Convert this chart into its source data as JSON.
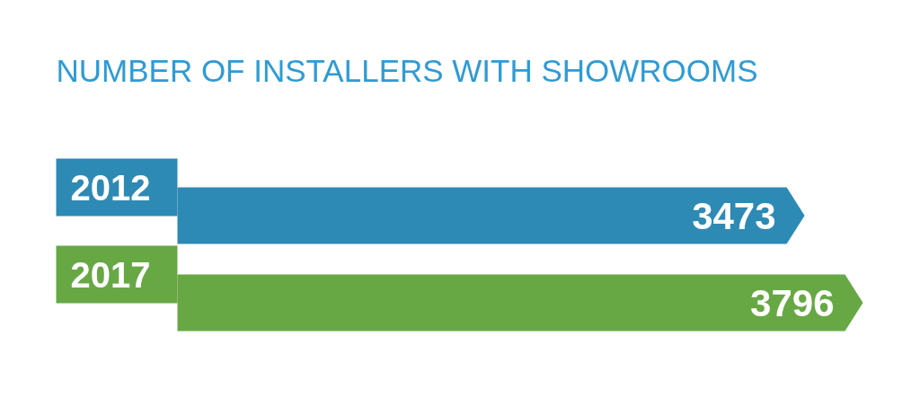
{
  "chart_data": {
    "type": "bar",
    "title": "NUMBER OF INSTALLERS WITH SHOWROOMS",
    "orientation": "horizontal",
    "categories": [
      "2012",
      "2017"
    ],
    "values": [
      3473,
      3796
    ],
    "colors": [
      "#2d8ab5",
      "#67a844"
    ],
    "data_labels": true
  }
}
